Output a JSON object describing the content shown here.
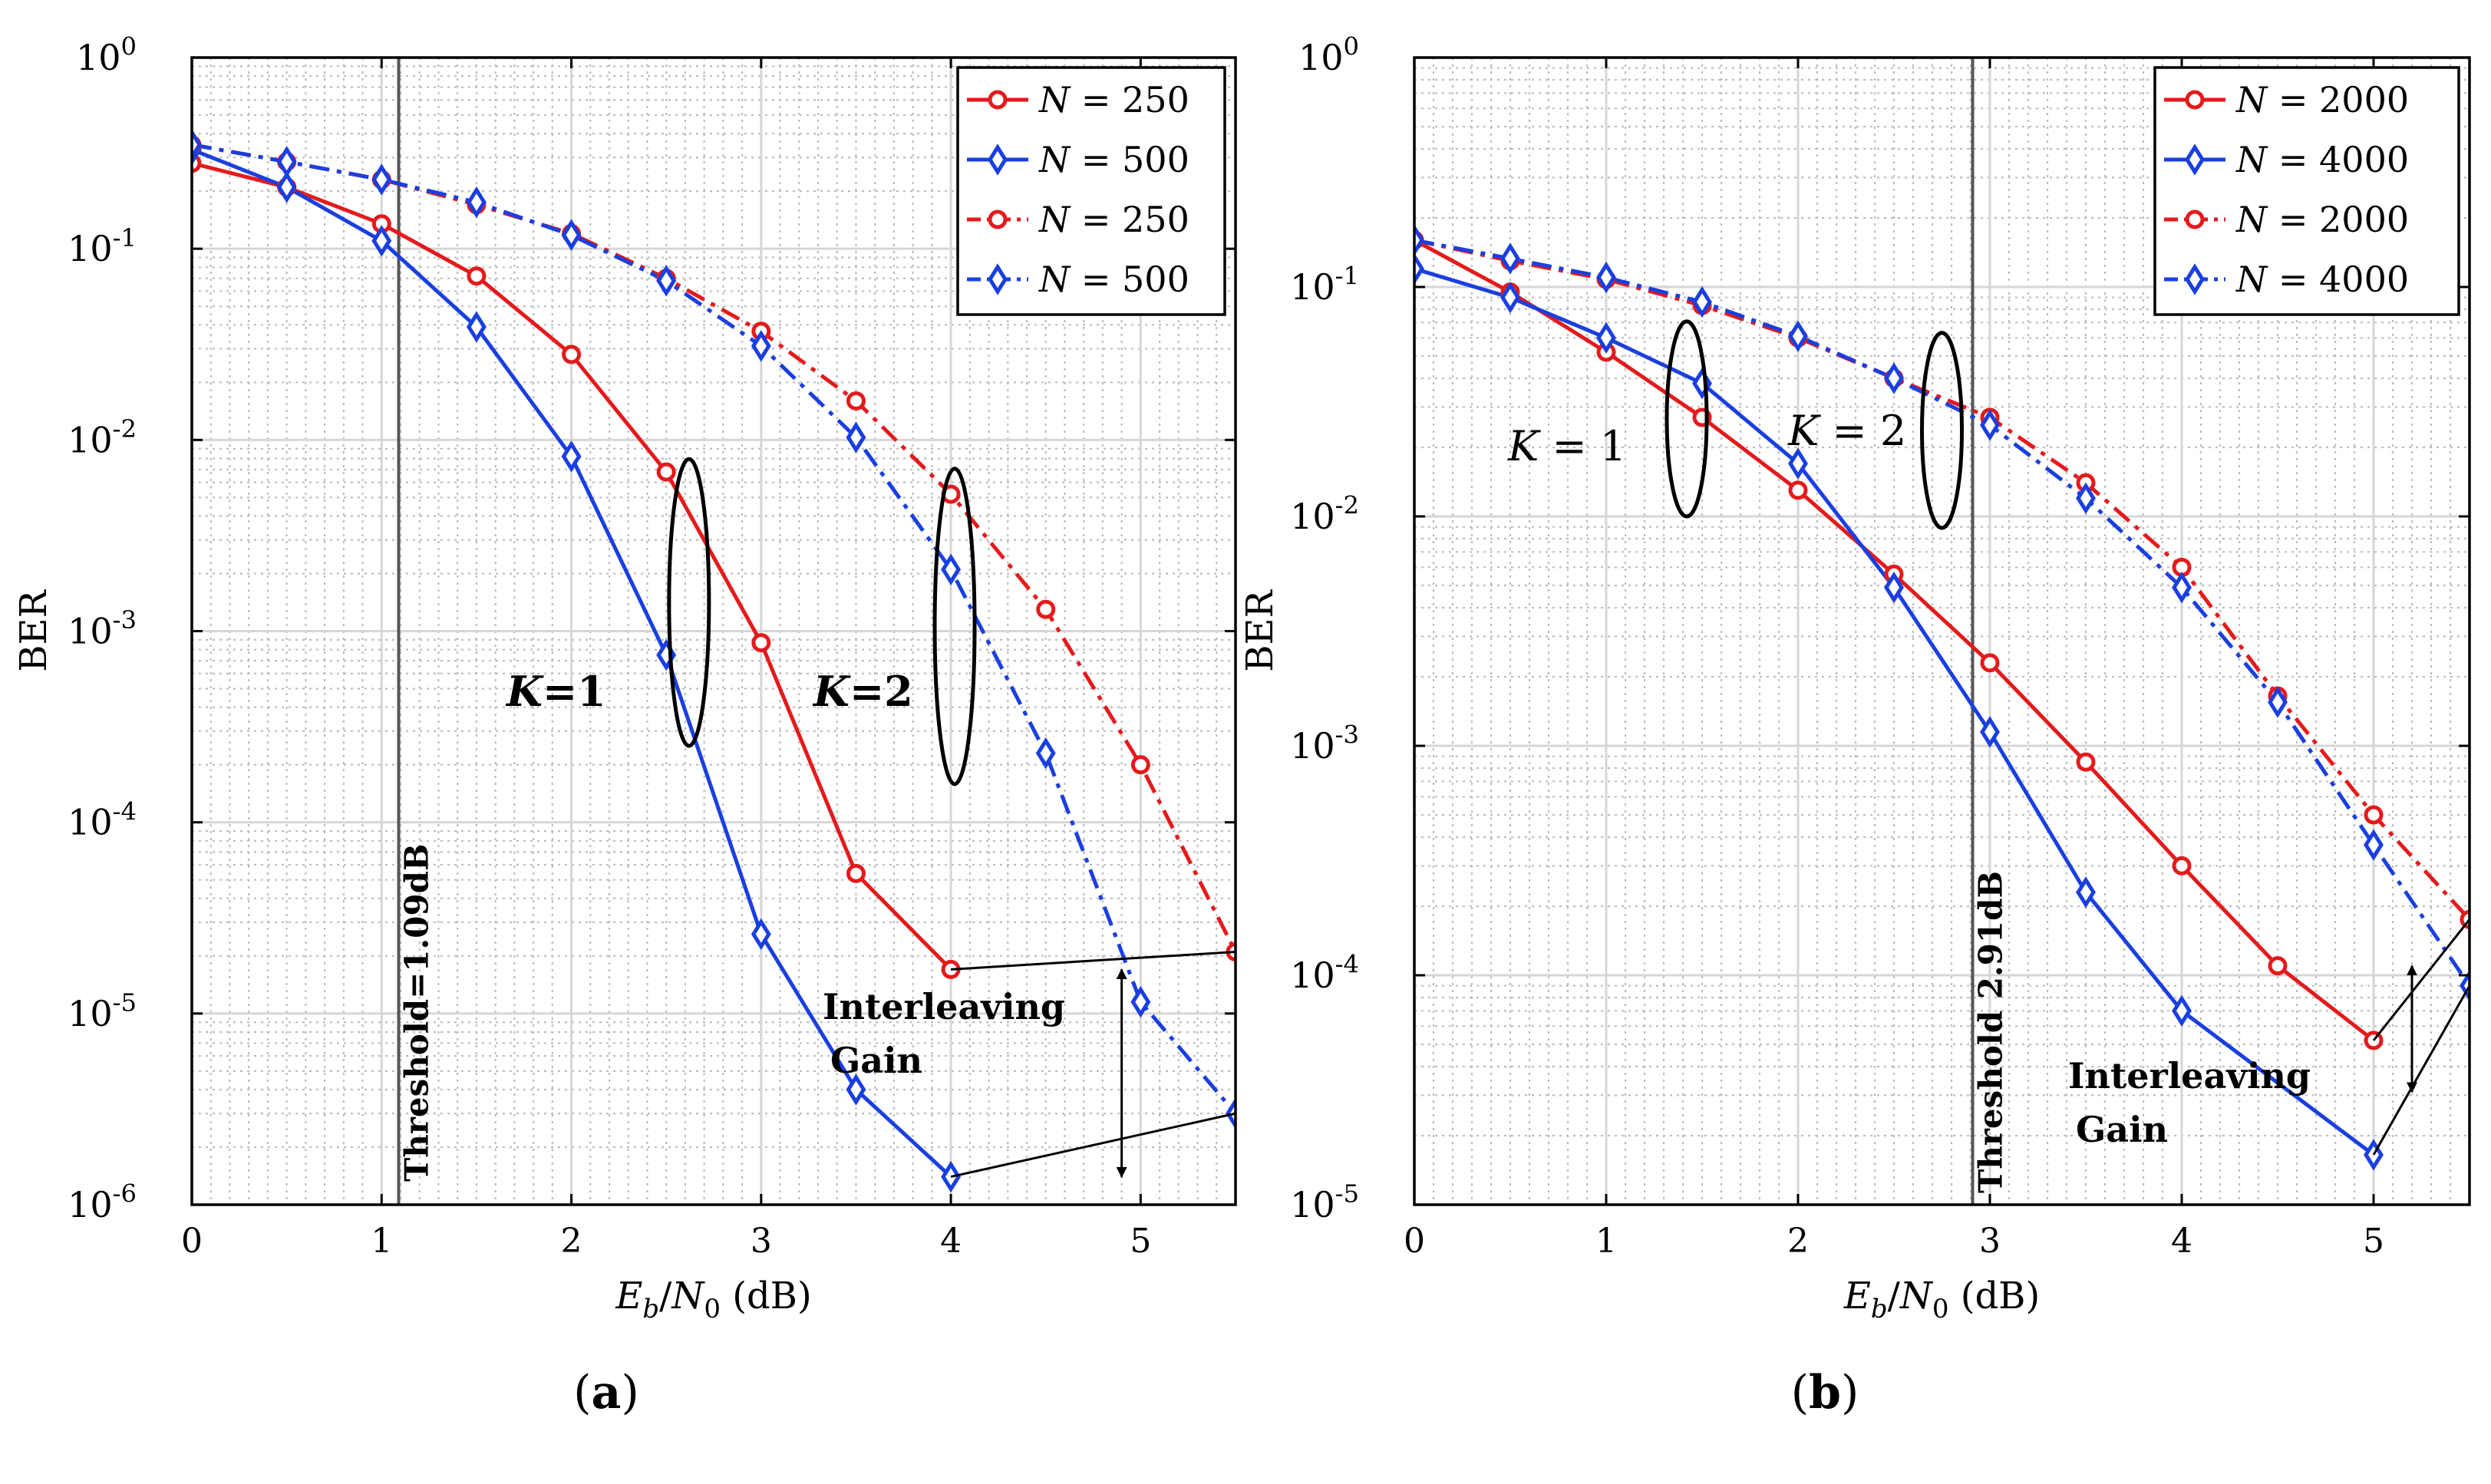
{
  "figure": {
    "caption_a": "a",
    "caption_b": "b"
  },
  "chart_data": [
    {
      "id": "a",
      "type": "line",
      "yscale": "log",
      "xlabel": "E_b/N_0 (dB)",
      "ylabel": "BER",
      "xlim": [
        0,
        5.5
      ],
      "ylim": [
        1e-06,
        1
      ],
      "xticks": [
        0,
        1,
        2,
        3,
        4,
        5
      ],
      "yticks": [
        "10^0",
        "10^-1",
        "10^-2",
        "10^-3",
        "10^-4",
        "10^-5",
        "10^-6"
      ],
      "grid": true,
      "legend_position": "top-right",
      "series": [
        {
          "name": "N = 250",
          "legend": "N = 250",
          "color": "#e41a1c",
          "dash": "solid",
          "marker": "circle",
          "x": [
            0,
            0.5,
            1,
            1.5,
            2,
            2.5,
            3,
            3.5,
            4
          ],
          "y": [
            0.28,
            0.21,
            0.135,
            0.072,
            0.028,
            0.0068,
            0.00087,
            5.4e-05,
            1.7e-05
          ]
        },
        {
          "name": "N = 500",
          "legend": "N = 500",
          "color": "#1a3fe0",
          "dash": "solid",
          "marker": "diamond",
          "x": [
            0,
            0.5,
            1,
            1.5,
            2,
            2.5,
            3,
            3.5,
            4
          ],
          "y": [
            0.33,
            0.21,
            0.11,
            0.039,
            0.0082,
            0.00075,
            2.6e-05,
            4e-06,
            1.4e-06
          ]
        },
        {
          "name": "N = 250 (K=2)",
          "legend": "N = 250",
          "color": "#e41a1c",
          "dash": "dashdot",
          "marker": "circle",
          "x": [
            0,
            0.5,
            1,
            1.5,
            2,
            2.5,
            3,
            3.5,
            4,
            4.5,
            5,
            5.5
          ],
          "y": [
            0.35,
            0.285,
            0.23,
            0.17,
            0.12,
            0.07,
            0.037,
            0.016,
            0.0052,
            0.0013,
            0.0002,
            2.1e-05
          ]
        },
        {
          "name": "N = 500 (K=2)",
          "legend": "N = 500",
          "color": "#1a3fe0",
          "dash": "dashdot",
          "marker": "diamond",
          "x": [
            0,
            0.5,
            1,
            1.5,
            2,
            2.5,
            3,
            3.5,
            4,
            4.5,
            5,
            5.5
          ],
          "y": [
            0.35,
            0.285,
            0.23,
            0.175,
            0.118,
            0.068,
            0.031,
            0.0103,
            0.0021,
            0.00023,
            1.15e-05,
            3e-06
          ]
        }
      ],
      "threshold": {
        "x": 1.09,
        "label": "Threshold=1.09dB"
      },
      "annotations": {
        "k1": "K=1",
        "k2": "K=2",
        "interleaving": [
          "Interleaving",
          "Gain"
        ]
      },
      "ellipses": [
        {
          "cx": 2.62,
          "log_y_top": -2.1,
          "log_y_bottom": -3.6
        },
        {
          "cx": 4.02,
          "log_y_top": -2.15,
          "log_y_bottom": -3.8
        }
      ],
      "gain": {
        "arrow_x": 4.9,
        "arrow_top_y": 1.7e-05,
        "arrow_bottom_y": 1.4e-06,
        "upper_line": [
          [
            4,
            1.7e-05
          ],
          [
            5.5,
            2.1e-05
          ]
        ],
        "lower_line": [
          [
            4,
            1.4e-06
          ],
          [
            5.5,
            3e-06
          ]
        ]
      }
    },
    {
      "id": "b",
      "type": "line",
      "yscale": "log",
      "xlabel": "E_b/N_0 (dB)",
      "ylabel": "BER",
      "xlim": [
        0,
        5.5
      ],
      "ylim": [
        1e-05,
        1
      ],
      "xticks": [
        0,
        1,
        2,
        3,
        4,
        5
      ],
      "yticks": [
        "10^0",
        "10^-1",
        "10^-2",
        "10^-3",
        "10^-4",
        "10^-5"
      ],
      "grid": true,
      "legend_position": "top-right",
      "series": [
        {
          "name": "N = 2000",
          "legend": "N = 2000",
          "color": "#e41a1c",
          "dash": "solid",
          "marker": "circle",
          "x": [
            0,
            0.5,
            1,
            1.5,
            2,
            2.5,
            3,
            3.5,
            4,
            4.5,
            5
          ],
          "y": [
            0.16,
            0.095,
            0.052,
            0.027,
            0.013,
            0.0056,
            0.0023,
            0.00085,
            0.0003,
            0.00011,
            5.2e-05
          ]
        },
        {
          "name": "N = 4000",
          "legend": "N = 4000",
          "color": "#1a3fe0",
          "dash": "solid",
          "marker": "diamond",
          "x": [
            0,
            0.5,
            1,
            1.5,
            2,
            2.5,
            3,
            3.5,
            4,
            5
          ],
          "y": [
            0.12,
            0.09,
            0.06,
            0.038,
            0.017,
            0.0049,
            0.00115,
            0.00023,
            7e-05,
            1.65e-05
          ]
        },
        {
          "name": "N = 2000 (K=2)",
          "legend": "N = 2000",
          "color": "#e41a1c",
          "dash": "dashdot",
          "marker": "circle",
          "x": [
            0,
            0.5,
            1,
            1.5,
            2,
            2.5,
            3,
            3.5,
            4,
            4.5,
            5,
            5.5
          ],
          "y": [
            0.16,
            0.13,
            0.108,
            0.083,
            0.06,
            0.04,
            0.027,
            0.014,
            0.006,
            0.00165,
            0.0005,
            0.000175
          ]
        },
        {
          "name": "N = 4000 (K=2)",
          "legend": "N = 4000",
          "color": "#1a3fe0",
          "dash": "dashdot",
          "marker": "diamond",
          "x": [
            0,
            0.5,
            1,
            1.5,
            2,
            2.5,
            3,
            3.5,
            4,
            4.5,
            5,
            5.5
          ],
          "y": [
            0.16,
            0.133,
            0.11,
            0.086,
            0.061,
            0.04,
            0.025,
            0.012,
            0.0049,
            0.00155,
            0.00037,
            9e-05
          ]
        }
      ],
      "threshold": {
        "x": 2.91,
        "label": "Threshold 2.91dB"
      },
      "annotations": {
        "k1": "K = 1",
        "k2": "K = 2",
        "interleaving": [
          "Interleaving",
          "Gain"
        ]
      },
      "ellipses": [
        {
          "cx": 1.42,
          "log_y_top": -1.15,
          "log_y_bottom": -2.0
        },
        {
          "cx": 2.75,
          "log_y_top": -1.2,
          "log_y_bottom": -2.05
        }
      ],
      "gain": {
        "arrow_x": 5.2,
        "arrow_top_y": 0.00011,
        "arrow_bottom_y": 3.1e-05,
        "upper_line": [
          [
            5,
            5.2e-05
          ],
          [
            5.5,
            0.000175
          ]
        ],
        "lower_line": [
          [
            5,
            1.65e-05
          ],
          [
            5.5,
            9e-05
          ]
        ]
      }
    }
  ]
}
